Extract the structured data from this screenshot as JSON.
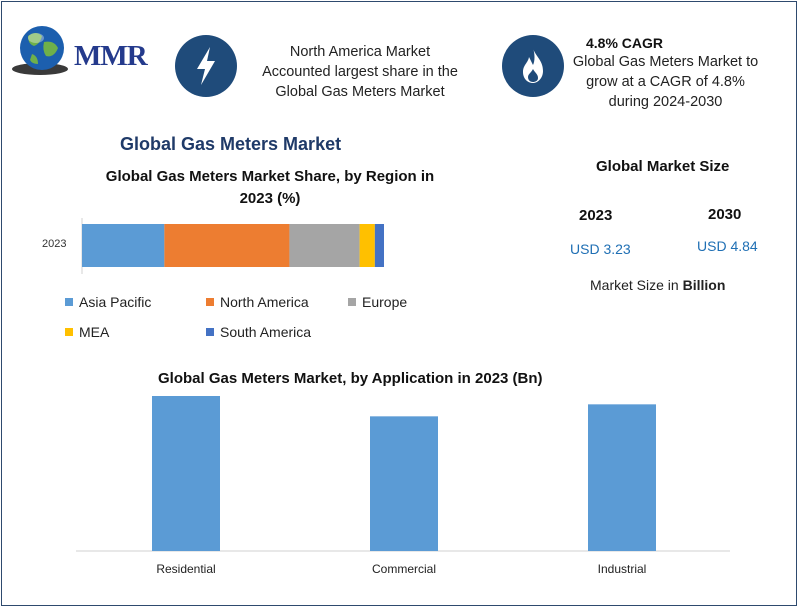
{
  "brand": {
    "logo_text": "MMR"
  },
  "header": {
    "left_text": [
      "North America Market",
      "Accounted largest share in the",
      "Global Gas Meters Market"
    ],
    "cagr_title": "4.8% CAGR",
    "right_text": [
      "Global Gas Meters Market to",
      "grow at a CAGR of 4.8%",
      "during 2024-2030"
    ]
  },
  "main_title": "Global Gas Meters Market",
  "market_size": {
    "title": "Global Market Size",
    "year_start": "2023",
    "year_end": "2030",
    "value_start": "USD 3.23",
    "value_end": "USD 4.84",
    "note_prefix": "Market Size in ",
    "note_unit": "Billion"
  },
  "colors": {
    "asia_pacific": "#5b9bd5",
    "north_america": "#ed7d31",
    "europe": "#a5a5a5",
    "mea": "#ffc000",
    "south_america": "#4472c4",
    "application_bar": "#5b9bd5",
    "icon_bg": "#1f4b7a"
  },
  "icons": {
    "left": "lightning-icon",
    "right": "flame-icon",
    "logo": "globe-icon"
  },
  "chart_data": [
    {
      "type": "bar",
      "orientation": "horizontal-stacked",
      "title": "Global Gas Meters Market Share, by Region in 2023 (%)",
      "categories": [
        "2023"
      ],
      "series": [
        {
          "name": "Asia Pacific",
          "values": [
            27
          ]
        },
        {
          "name": "North America",
          "values": [
            41
          ]
        },
        {
          "name": "Europe",
          "values": [
            23
          ]
        },
        {
          "name": "MEA",
          "values": [
            5
          ]
        },
        {
          "name": "South America",
          "values": [
            3
          ]
        }
      ],
      "legend": "bottom"
    },
    {
      "type": "bar",
      "title": "Global Gas Meters Market, by Application in 2023 (Bn)",
      "categories": [
        "Residential",
        "Commercial",
        "Industrial"
      ],
      "values": [
        1.37,
        1.01,
        1.1
      ],
      "ylim": [
        0,
        1.5
      ],
      "grid": false
    }
  ]
}
